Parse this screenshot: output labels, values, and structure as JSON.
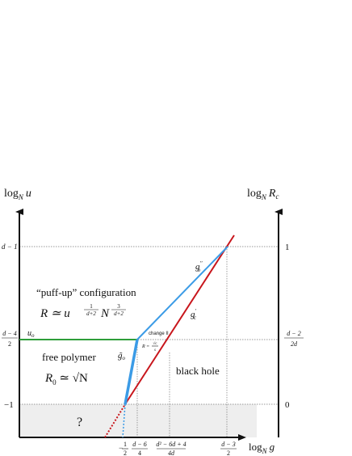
{
  "axes": {
    "left": {
      "base": "log",
      "sub": "N",
      "var": "u"
    },
    "right": {
      "base": "log",
      "sub": "N",
      "var": "R",
      "varsub": "c"
    },
    "bottom": {
      "base": "log",
      "sub": "N",
      "var": "g"
    }
  },
  "left_ticks": [
    {
      "text": "d − 1"
    },
    {
      "num": "d − 4",
      "den": "2"
    },
    {
      "text": "−1"
    }
  ],
  "right_ticks": [
    {
      "text": "1"
    },
    {
      "num": "d − 2",
      "den": "2d"
    },
    {
      "text": "0"
    }
  ],
  "bottom_ticks": [
    {
      "sign": "−",
      "num": "1",
      "den": "2"
    },
    {
      "num": "d − 6",
      "den": "4"
    },
    {
      "num": "d² − 6d + 4",
      "den": "4d"
    },
    {
      "num": "d − 3",
      "den": "2"
    }
  ],
  "regions": {
    "puff_up": "“puff-up” configuration",
    "puff_formula": {
      "lhs": "R ≃ u",
      "e1num": "1",
      "e1den": "d+2",
      "mid": "N",
      "e2num": "3",
      "e2den": "d+2"
    },
    "free": "free polymer",
    "free_formula": {
      "lhs": "R",
      "sub": "0",
      "rhs": " ≃ √N"
    },
    "black_hole": "black hole",
    "unknown": "?"
  },
  "lines": {
    "u_o": {
      "base": "u",
      "sub": "o"
    },
    "g_o2": {
      "base": "g",
      "sub": "o",
      "sup": "′′"
    },
    "g_c1": {
      "base": "g",
      "sub": "c",
      "sup": "′"
    },
    "g_o_tilde": {
      "base": "g̃",
      "sub": "o"
    },
    "change": "change II",
    "R_rel": {
      "lhs": "R =",
      "num": "√c",
      "den": "s"
    }
  }
}
